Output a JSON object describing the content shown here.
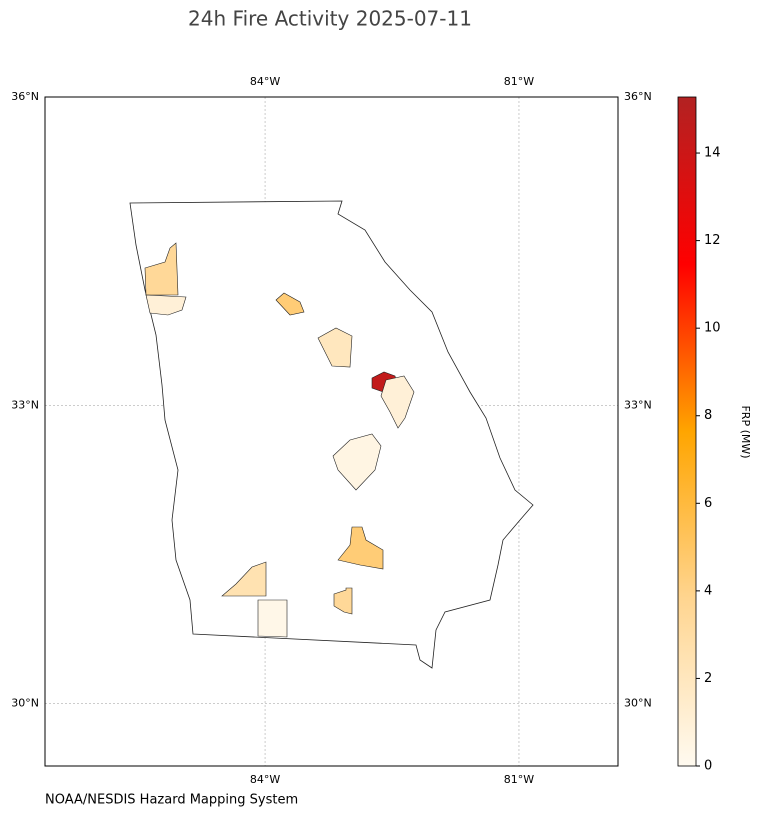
{
  "chart_data": {
    "type": "choropleth",
    "title": "24h Fire Activity 2025-07-11",
    "source": "NOAA/NESDIS Hazard Mapping System",
    "xlim": [
      -86.6,
      -79.83
    ],
    "xticks": [
      {
        "value": -84,
        "label": "84°W"
      },
      {
        "value": -81,
        "label": "81°W"
      }
    ],
    "ylim": [
      29.36,
      36
    ],
    "yticks": [
      {
        "value": 30,
        "label": "30°N"
      },
      {
        "value": 33,
        "label": "33°N"
      },
      {
        "value": 36,
        "label": "36°N"
      }
    ],
    "grid": true,
    "colorbar": {
      "label": "FRP (MW)",
      "lim": [
        0,
        15.28
      ],
      "ticks": [
        0,
        2,
        4,
        6,
        8,
        10,
        12,
        14
      ],
      "colormap": [
        "#fffaf0",
        "#ffd590",
        "#ffa500",
        "#ff0000",
        "#b22222"
      ]
    },
    "values": [
      3.5,
      1,
      4.5,
      2,
      14.5,
      1,
      0.5,
      4.5,
      2.5,
      3.5,
      0.3
    ]
  }
}
